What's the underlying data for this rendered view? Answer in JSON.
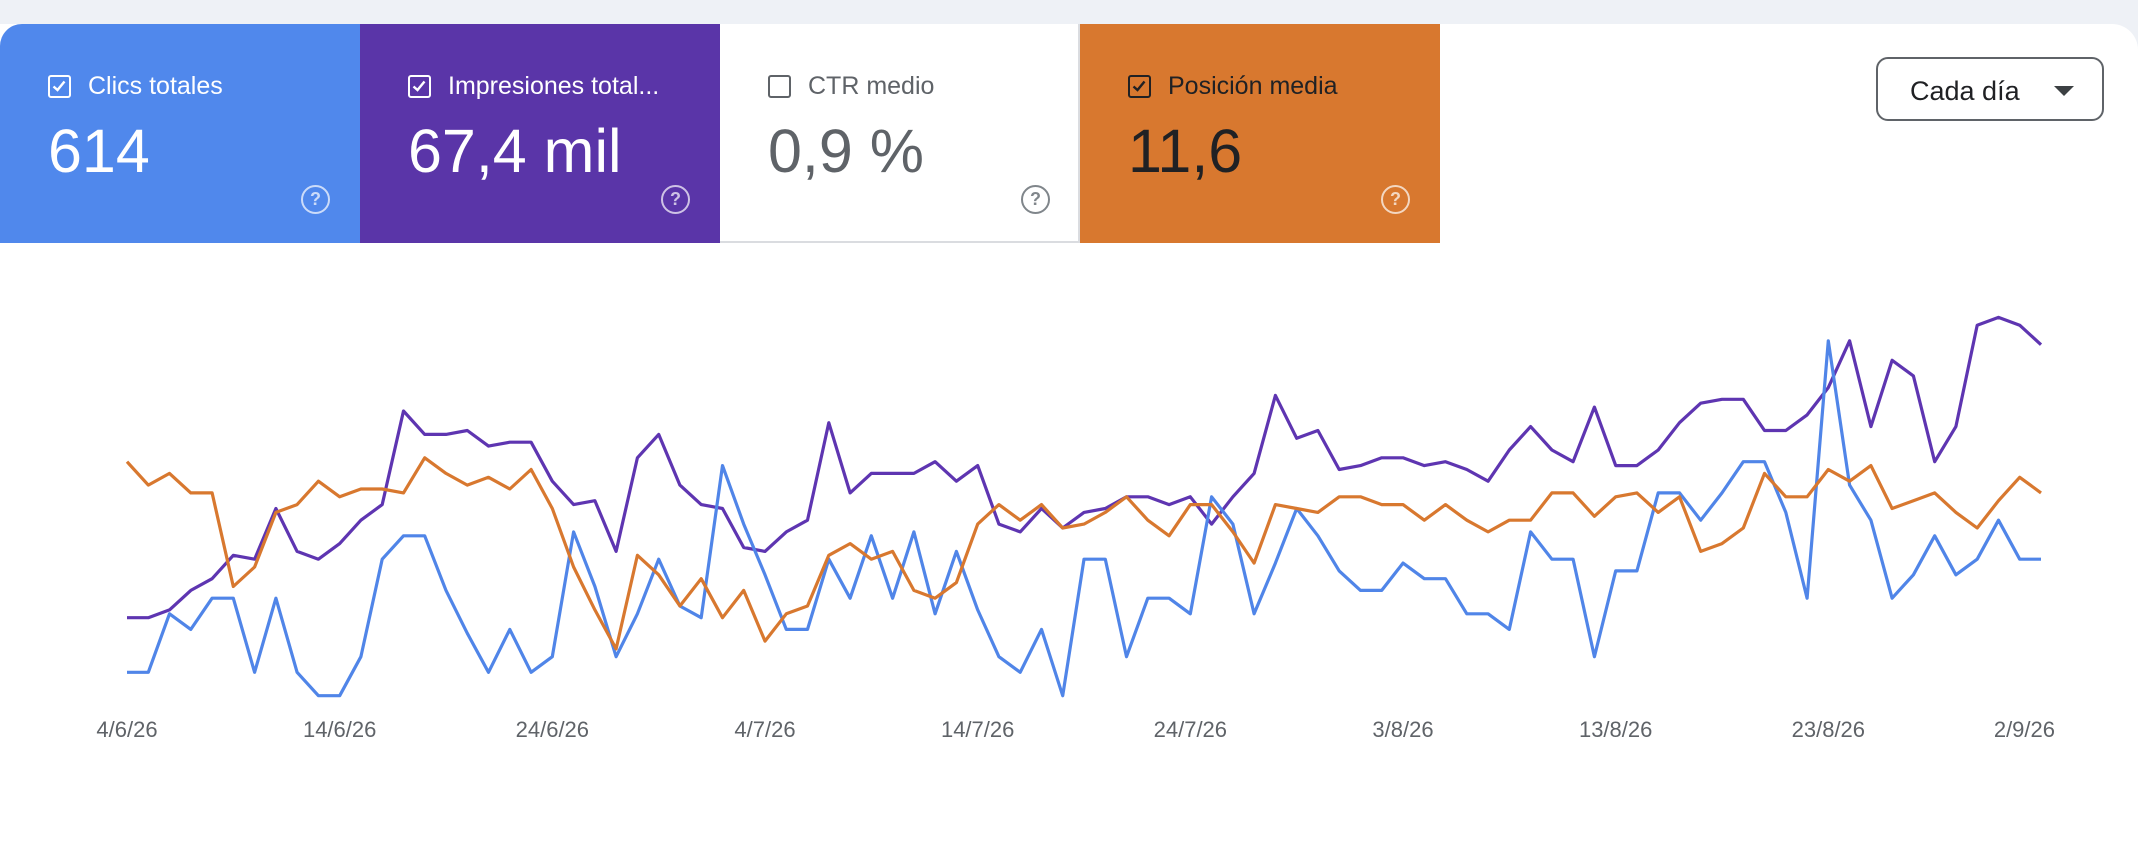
{
  "cards": [
    {
      "label": "Clics totales",
      "value": "614",
      "checked": true,
      "bg": "#5088ec"
    },
    {
      "label": "Impresiones total...",
      "value": "67,4 mil",
      "checked": true,
      "bg": "#5a35a8"
    },
    {
      "label": "CTR medio",
      "value": "0,9 %",
      "checked": false,
      "bg": "#ffffff"
    },
    {
      "label": "Posición media",
      "value": "11,6",
      "checked": true,
      "bg": "#d8782f"
    }
  ],
  "help_glyph": "?",
  "dropdown": {
    "label": "Cada día"
  },
  "chart_data": {
    "type": "line",
    "x_tick_labels": [
      "4/6/26",
      "14/6/26",
      "24/6/26",
      "4/7/26",
      "14/7/26",
      "24/7/26",
      "3/8/26",
      "13/8/26",
      "23/8/26",
      "2/9/26"
    ],
    "grid": false,
    "y_axis_visible": false,
    "ylim": [
      0,
      100
    ],
    "series": [
      {
        "id": "impresiones",
        "color": "#5e35b1",
        "values": [
          17,
          17,
          19,
          24,
          27,
          33,
          32,
          45,
          34,
          32,
          36,
          42,
          46,
          70,
          64,
          64,
          65,
          61,
          62,
          62,
          52,
          46,
          47,
          34,
          58,
          64,
          51,
          46,
          45,
          35,
          34,
          39,
          42,
          67,
          49,
          54,
          54,
          54,
          57,
          52,
          56,
          41,
          39,
          45,
          40,
          44,
          45,
          48,
          48,
          46,
          48,
          41,
          48,
          54,
          74,
          63,
          65,
          55,
          56,
          58,
          58,
          56,
          57,
          55,
          52,
          60,
          66,
          60,
          57,
          71,
          56,
          56,
          60,
          67,
          72,
          73,
          73,
          65,
          65,
          69,
          76,
          88,
          66,
          83,
          79,
          57,
          66,
          92,
          94,
          92,
          87
        ]
      },
      {
        "id": "clics",
        "color": "#5085e8",
        "values": [
          3,
          3,
          18,
          14,
          22,
          22,
          3,
          22,
          3,
          -3,
          -3,
          7,
          32,
          38,
          38,
          24,
          13,
          3,
          14,
          3,
          7,
          39,
          25,
          7,
          18,
          32,
          20,
          17,
          56,
          41,
          28,
          14,
          14,
          32,
          22,
          38,
          22,
          39,
          18,
          34,
          19,
          7,
          3,
          14,
          -3,
          32,
          32,
          7,
          22,
          22,
          18,
          48,
          41,
          18,
          31,
          45,
          38,
          29,
          24,
          24,
          31,
          27,
          27,
          18,
          18,
          14,
          39,
          32,
          32,
          7,
          29,
          29,
          49,
          49,
          42,
          49,
          57,
          57,
          44,
          22,
          88,
          51,
          42,
          22,
          28,
          38,
          28,
          32,
          42,
          32,
          32
        ]
      },
      {
        "id": "posicion",
        "color": "#d8782f",
        "values": [
          57,
          51,
          54,
          49,
          49,
          25,
          30,
          44,
          46,
          52,
          48,
          50,
          50,
          49,
          58,
          54,
          51,
          53,
          50,
          55,
          45,
          30,
          19,
          9,
          33,
          28,
          20,
          27,
          17,
          24,
          11,
          18,
          20,
          33,
          36,
          32,
          34,
          24,
          22,
          26,
          41,
          46,
          42,
          46,
          40,
          41,
          44,
          48,
          42,
          38,
          46,
          46,
          39,
          31,
          46,
          45,
          44,
          48,
          48,
          46,
          46,
          42,
          46,
          42,
          39,
          42,
          42,
          49,
          49,
          43,
          48,
          49,
          44,
          48,
          34,
          36,
          40,
          54,
          48,
          48,
          55,
          52,
          56,
          45,
          47,
          49,
          44,
          40,
          47,
          53,
          49
        ]
      }
    ]
  }
}
